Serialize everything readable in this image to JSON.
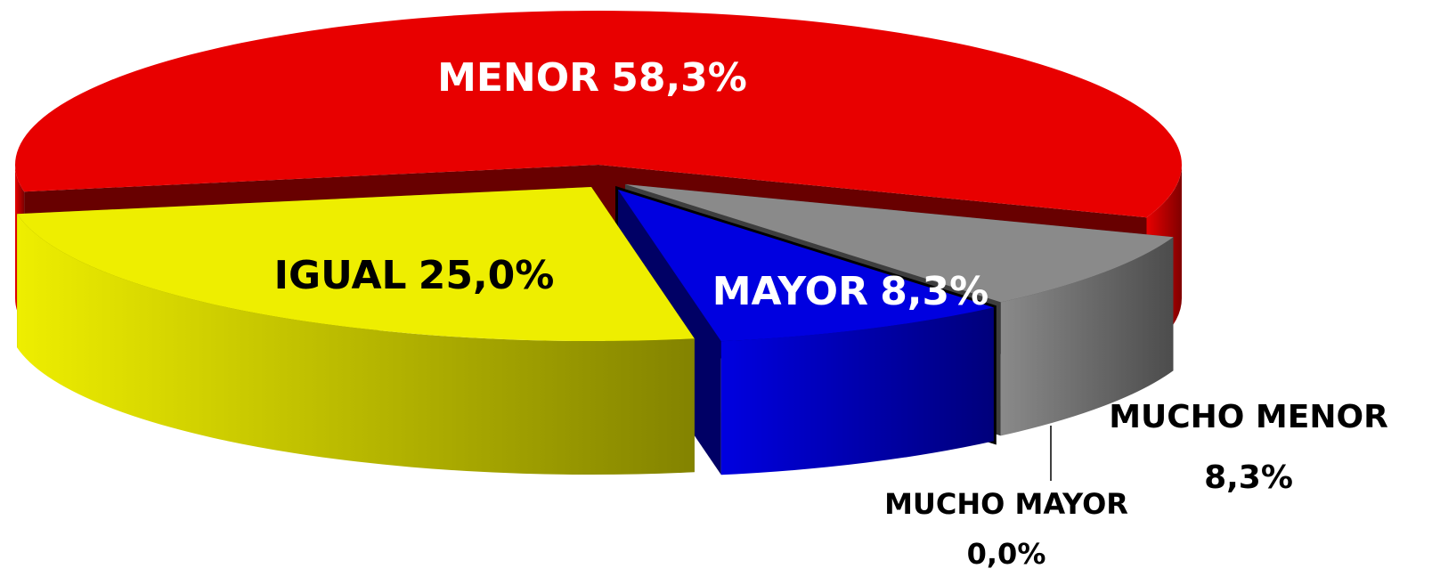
{
  "chart_data": {
    "type": "pie",
    "categories": [
      "MENOR",
      "IGUAL",
      "MAYOR",
      "MUCHO MAYOR",
      "MUCHO MENOR"
    ],
    "values": [
      58.3,
      25.0,
      8.3,
      0.0,
      8.3
    ],
    "value_labels": [
      "58,3%",
      "25,0%",
      "8,3%",
      "0,0%",
      "8,3%"
    ],
    "colors": [
      "#e80000",
      "#eeee00",
      "#0000e0",
      "#000000",
      "#8a8a8a"
    ]
  }
}
